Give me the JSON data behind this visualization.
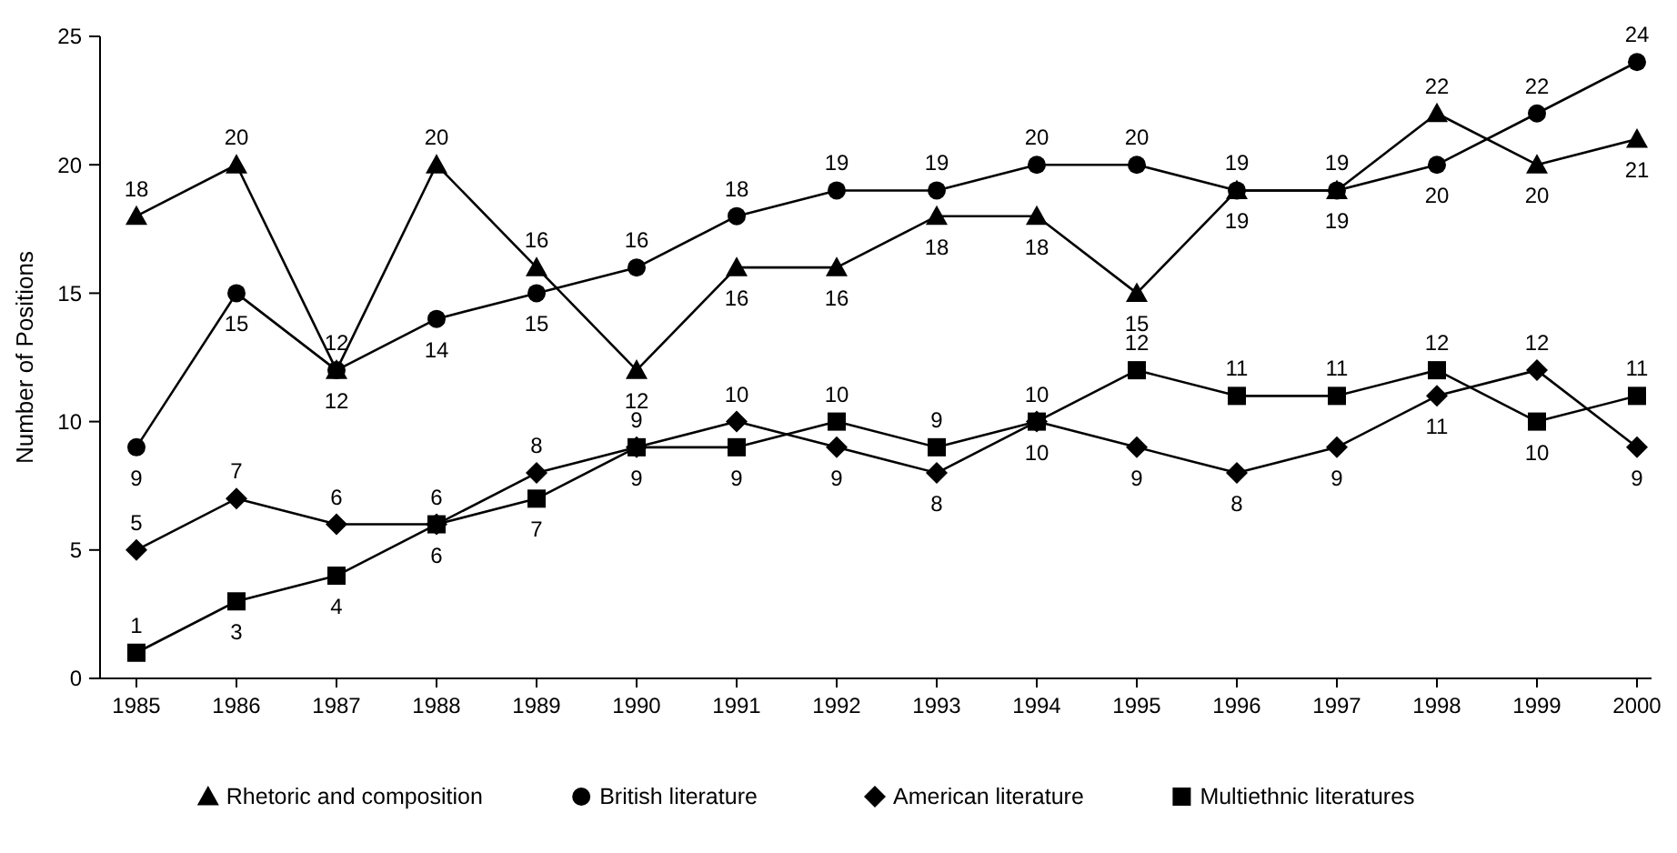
{
  "chart_data": {
    "type": "line",
    "ylabel": "Number of Positions",
    "categories": [
      "1985",
      "1986",
      "1987",
      "1988",
      "1989",
      "1990",
      "1991",
      "1992",
      "1993",
      "1994",
      "1995",
      "1996",
      "1997",
      "1998",
      "1999",
      "2000"
    ],
    "series": [
      {
        "name": "Rhetoric and composition",
        "color": "#000000",
        "marker": "triangle",
        "values": [
          18,
          20,
          12,
          20,
          16,
          12,
          16,
          16,
          18,
          18,
          15,
          19,
          19,
          22,
          20,
          21
        ]
      },
      {
        "name": "British literature",
        "color": "#000000",
        "marker": "circle",
        "values": [
          9,
          15,
          12,
          14,
          15,
          16,
          18,
          19,
          19,
          20,
          20,
          19,
          19,
          20,
          22,
          24
        ]
      },
      {
        "name": "American literature",
        "color": "#000000",
        "marker": "diamond",
        "values": [
          5,
          7,
          6,
          6,
          8,
          9,
          10,
          9,
          8,
          10,
          9,
          8,
          9,
          11,
          12,
          9
        ]
      },
      {
        "name": "Multiethnic literatures",
        "color": "#000000",
        "marker": "square",
        "values": [
          1,
          3,
          4,
          6,
          7,
          9,
          9,
          10,
          9,
          10,
          12,
          11,
          11,
          12,
          10,
          11
        ]
      }
    ],
    "ylim": [
      0,
      25
    ],
    "yticks": [
      0,
      5,
      10,
      15,
      20,
      25
    ],
    "data_labels": true,
    "legend": "bottom",
    "grid": false,
    "line_style": "solid"
  }
}
